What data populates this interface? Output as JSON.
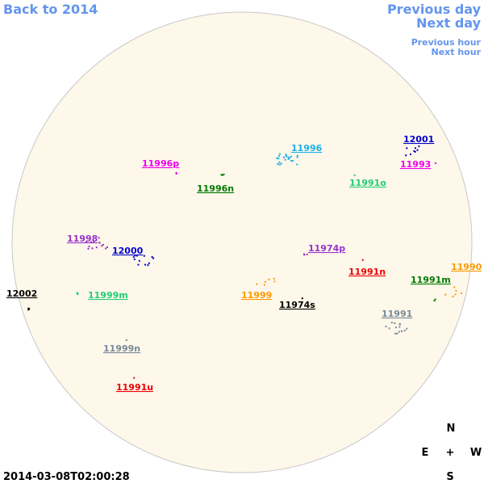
{
  "nav": {
    "back": "Back to 2014",
    "previous_day": "Previous day",
    "next_day": "Next day",
    "previous_hour": "Previous hour",
    "next_hour": "Next hour"
  },
  "regions": [
    {
      "label": "12001",
      "color": "#0000cd"
    },
    {
      "label": "11993",
      "color": "#ee00ee"
    },
    {
      "label": "11996",
      "color": "#1cb0e8"
    },
    {
      "label": "11996p",
      "color": "#ee00ee"
    },
    {
      "label": "11996n",
      "color": "#007a00"
    },
    {
      "label": "11991o",
      "color": "#22cc77"
    },
    {
      "label": "11998",
      "color": "#9932cc"
    },
    {
      "label": "12000",
      "color": "#0000cd"
    },
    {
      "label": "11974p",
      "color": "#9932cc"
    },
    {
      "label": "11991n",
      "color": "#ee0000"
    },
    {
      "label": "11990",
      "color": "#ff9900"
    },
    {
      "label": "11991m",
      "color": "#007a00"
    },
    {
      "label": "12002",
      "color": "#000000"
    },
    {
      "label": "11999m",
      "color": "#22cc77"
    },
    {
      "label": "11999",
      "color": "#ff9900"
    },
    {
      "label": "11974s",
      "color": "#000000"
    },
    {
      "label": "11991",
      "color": "#778899"
    },
    {
      "label": "11999n",
      "color": "#778899"
    },
    {
      "label": "11991u",
      "color": "#ee0000"
    }
  ],
  "timestamp": "2014-03-08T02:00:28",
  "compass": {
    "north": "N",
    "east": "E",
    "center": "+",
    "west": "W",
    "south": "S"
  }
}
